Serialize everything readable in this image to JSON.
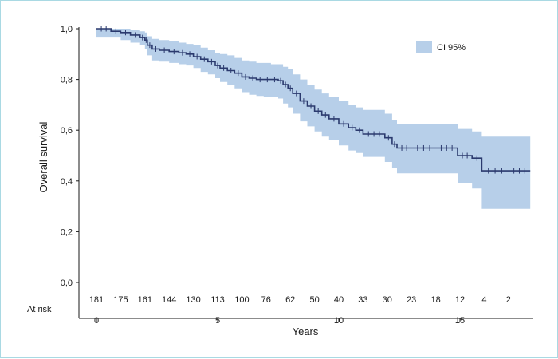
{
  "chart_data": {
    "type": "line",
    "title": "",
    "xlabel": "Years",
    "ylabel": "Overall survival",
    "xlim": [
      0,
      18
    ],
    "ylim": [
      0,
      1
    ],
    "x_ticks": [
      0,
      5,
      10,
      15
    ],
    "x_tick_labels": [
      "0",
      "5",
      "10",
      "15"
    ],
    "y_ticks": [
      0,
      0.2,
      0.4,
      0.6,
      0.8,
      1.0
    ],
    "y_tick_labels": [
      "0,0",
      "0,2",
      "0,4",
      "0,6",
      "0,8",
      "1,0"
    ],
    "grid": false,
    "legend": {
      "position": "top-right",
      "entries": [
        {
          "label": "CI 95%",
          "color": "#b7cfe9"
        }
      ]
    },
    "colors": {
      "curve": "#2b3a6e",
      "ci": "#b7cfe9",
      "axis": "#1a1a1a"
    },
    "at_risk": {
      "label": "At risk",
      "values": [
        "181",
        "175",
        "161",
        "144",
        "130",
        "113",
        "100",
        "76",
        "62",
        "50",
        "40",
        "33",
        "30",
        "23",
        "18",
        "12",
        "4",
        "2"
      ],
      "x": [
        0,
        1,
        2,
        3,
        4,
        5,
        6,
        7,
        8,
        9,
        10,
        11,
        12,
        13,
        14,
        15,
        16,
        17
      ]
    },
    "series": [
      {
        "type": "step",
        "x": [
          0,
          0.6,
          1.0,
          1.4,
          1.8,
          2.0,
          2.1,
          2.3,
          2.6,
          3.0,
          3.4,
          3.7,
          4.0,
          4.3,
          4.6,
          4.9,
          5.1,
          5.4,
          5.7,
          6.0,
          6.3,
          6.6,
          6.9,
          7.2,
          7.5,
          7.7,
          7.9,
          8.1,
          8.4,
          8.7,
          9.0,
          9.3,
          9.6,
          10.0,
          10.4,
          10.7,
          11.0,
          11.9,
          12.2,
          12.4,
          13.0,
          14.0,
          14.9,
          15.5,
          15.9,
          17.0,
          17.9
        ],
        "y": [
          1.0,
          0.99,
          0.985,
          0.975,
          0.965,
          0.955,
          0.935,
          0.92,
          0.915,
          0.91,
          0.905,
          0.9,
          0.89,
          0.88,
          0.87,
          0.855,
          0.845,
          0.835,
          0.825,
          0.81,
          0.805,
          0.8,
          0.8,
          0.8,
          0.795,
          0.78,
          0.765,
          0.745,
          0.715,
          0.695,
          0.675,
          0.66,
          0.645,
          0.625,
          0.61,
          0.6,
          0.585,
          0.57,
          0.545,
          0.53,
          0.53,
          0.53,
          0.5,
          0.49,
          0.44,
          0.44,
          0.44
        ]
      },
      {
        "name": "CI 95%",
        "type": "band",
        "x": [
          0,
          0.6,
          1.0,
          1.4,
          1.8,
          2.0,
          2.1,
          2.3,
          2.6,
          3.0,
          3.4,
          3.7,
          4.0,
          4.3,
          4.6,
          4.9,
          5.1,
          5.4,
          5.7,
          6.0,
          6.3,
          6.6,
          6.9,
          7.2,
          7.5,
          7.7,
          7.9,
          8.1,
          8.4,
          8.7,
          9.0,
          9.3,
          9.6,
          10.0,
          10.4,
          10.7,
          11.0,
          11.9,
          12.2,
          12.4,
          13.0,
          14.0,
          14.9,
          15.5,
          15.9,
          17.0,
          17.9
        ],
        "upper": [
          1.0,
          1.0,
          1.0,
          0.995,
          0.99,
          0.985,
          0.97,
          0.96,
          0.955,
          0.95,
          0.945,
          0.94,
          0.935,
          0.925,
          0.915,
          0.905,
          0.9,
          0.895,
          0.885,
          0.875,
          0.87,
          0.865,
          0.865,
          0.86,
          0.86,
          0.85,
          0.84,
          0.82,
          0.8,
          0.78,
          0.76,
          0.745,
          0.73,
          0.715,
          0.7,
          0.69,
          0.68,
          0.665,
          0.64,
          0.625,
          0.625,
          0.625,
          0.605,
          0.595,
          0.575,
          0.575,
          0.575
        ],
        "lower": [
          0.965,
          0.965,
          0.955,
          0.945,
          0.935,
          0.92,
          0.895,
          0.875,
          0.87,
          0.865,
          0.86,
          0.855,
          0.845,
          0.83,
          0.82,
          0.805,
          0.79,
          0.78,
          0.765,
          0.75,
          0.74,
          0.735,
          0.73,
          0.73,
          0.725,
          0.705,
          0.69,
          0.665,
          0.635,
          0.615,
          0.595,
          0.575,
          0.56,
          0.54,
          0.52,
          0.51,
          0.495,
          0.475,
          0.45,
          0.43,
          0.43,
          0.43,
          0.39,
          0.37,
          0.29,
          0.29,
          0.29
        ]
      }
    ]
  }
}
